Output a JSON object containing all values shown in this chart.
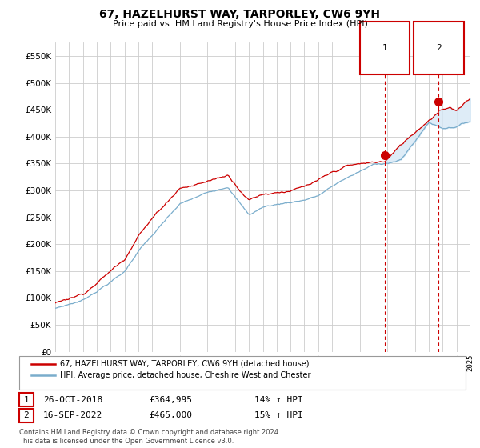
{
  "title": "67, HAZELHURST WAY, TARPORLEY, CW6 9YH",
  "subtitle": "Price paid vs. HM Land Registry's House Price Index (HPI)",
  "legend_line1": "67, HAZELHURST WAY, TARPORLEY, CW6 9YH (detached house)",
  "legend_line2": "HPI: Average price, detached house, Cheshire West and Chester",
  "annotation1_date": "26-OCT-2018",
  "annotation1_price": "£364,995",
  "annotation1_hpi": "14% ↑ HPI",
  "annotation2_date": "16-SEP-2022",
  "annotation2_price": "£465,000",
  "annotation2_hpi": "15% ↑ HPI",
  "footnote": "Contains HM Land Registry data © Crown copyright and database right 2024.\nThis data is licensed under the Open Government Licence v3.0.",
  "red_color": "#cc0000",
  "blue_color": "#7aadcc",
  "fill_color": "#d6e8f5",
  "vline_color": "#cc0000",
  "grid_color": "#cccccc",
  "background_color": "#ffffff",
  "ylim": [
    0,
    575000
  ],
  "yticks": [
    0,
    50000,
    100000,
    150000,
    200000,
    250000,
    300000,
    350000,
    400000,
    450000,
    500000,
    550000
  ],
  "purchase1_year": 2018.82,
  "purchase1_value": 364995,
  "purchase2_year": 2022.71,
  "purchase2_value": 465000
}
